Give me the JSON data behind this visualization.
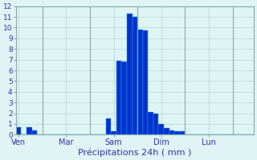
{
  "title": "Précipitations 24h ( mm )",
  "bar_color": "#0033cc",
  "bar_edge_color": "#3399ff",
  "background_color": "#dff4f4",
  "grid_color": "#aacccc",
  "text_color": "#3333aa",
  "ylim": [
    0,
    12
  ],
  "yticks": [
    0,
    1,
    2,
    3,
    4,
    5,
    6,
    7,
    8,
    9,
    10,
    11,
    12
  ],
  "bar_values": [
    0.7,
    0,
    0.7,
    0.4,
    0,
    0,
    0,
    0,
    0,
    0,
    0,
    0,
    0,
    0,
    0,
    0,
    0,
    1.5,
    0.3,
    6.9,
    6.8,
    11.3,
    11.0,
    9.8,
    9.7,
    2.1,
    2.0,
    1.0,
    0.6,
    0.4,
    0.3,
    0.3,
    0,
    0,
    0,
    0,
    0,
    0,
    0,
    0,
    0,
    0,
    0,
    0,
    0
  ],
  "n_total": 45,
  "day_labels": [
    "Ven",
    "Mar",
    "Sam",
    "Dim",
    "Lun"
  ],
  "day_tick_positions": [
    0,
    9,
    18,
    27,
    36
  ],
  "day_vline_positions": [
    4.5,
    13.5,
    22.5,
    31.5,
    40.5
  ]
}
